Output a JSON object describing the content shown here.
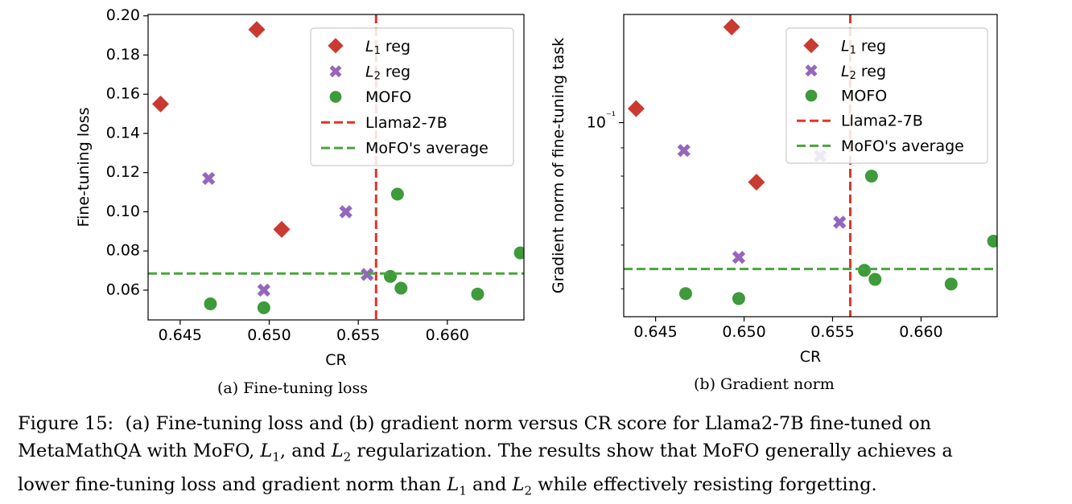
{
  "chart_data": [
    {
      "type": "scatter",
      "xlabel": "CR",
      "ylabel": "Fine-tuning loss",
      "xlim": [
        0.6432,
        0.6643
      ],
      "ylim": [
        0.0448,
        0.2007
      ],
      "xticks": [
        0.645,
        0.65,
        0.655,
        0.66
      ],
      "xtick_labels": [
        "0.645",
        "0.650",
        "0.655",
        "0.660"
      ],
      "yticks": [
        0.06,
        0.08,
        0.1,
        0.12,
        0.14,
        0.16,
        0.18,
        0.2
      ],
      "ytick_labels": [
        "0.06",
        "0.08",
        "0.10",
        "0.12",
        "0.14",
        "0.16",
        "0.18",
        "0.20"
      ],
      "legend_position": "upper right",
      "series": [
        {
          "name": "L1 reg",
          "marker": "diamond",
          "color": "#c93a30",
          "points": [
            [
              0.6439,
              0.155
            ],
            [
              0.6493,
              0.193
            ],
            [
              0.6507,
              0.091
            ]
          ]
        },
        {
          "name": "L2 reg",
          "marker": "x",
          "color": "#9467bd",
          "points": [
            [
              0.6466,
              0.117
            ],
            [
              0.6497,
              0.06
            ],
            [
              0.6543,
              0.1
            ],
            [
              0.6555,
              0.068
            ]
          ]
        },
        {
          "name": "MOFO",
          "marker": "circle",
          "color": "#3e9a3a",
          "points": [
            [
              0.6467,
              0.053
            ],
            [
              0.6497,
              0.051
            ],
            [
              0.6568,
              0.067
            ],
            [
              0.6572,
              0.109
            ],
            [
              0.6574,
              0.061
            ],
            [
              0.6617,
              0.058
            ],
            [
              0.6641,
              0.079
            ]
          ]
        }
      ],
      "reference_lines": [
        {
          "name": "Llama2-7B",
          "orientation": "vertical",
          "value": 0.656,
          "color": "#e0342a"
        },
        {
          "name": "MoFO's average",
          "orientation": "horizontal",
          "value": 0.0685,
          "color": "#4aa33d"
        }
      ],
      "caption": "(a) Fine-tuning loss"
    },
    {
      "type": "scatter",
      "xlabel": "CR",
      "ylabel": "Gradient norm of fine-tuning task",
      "xlim": [
        0.6432,
        0.6643
      ],
      "ylim": [
        0.0445,
        0.157
      ],
      "yscale": "log",
      "xticks": [
        0.645,
        0.65,
        0.655,
        0.66
      ],
      "xtick_labels": [
        "0.645",
        "0.650",
        "0.655",
        "0.660"
      ],
      "yticks": [
        0.1
      ],
      "ytick_labels": [
        "10⁻¹"
      ],
      "legend_position": "upper right",
      "series": [
        {
          "name": "L1 reg",
          "marker": "diamond",
          "color": "#c93a30",
          "points": [
            [
              0.6439,
              0.106
            ],
            [
              0.6493,
              0.149
            ],
            [
              0.6507,
              0.078
            ]
          ]
        },
        {
          "name": "L2 reg",
          "marker": "x",
          "color": "#9467bd",
          "points": [
            [
              0.6466,
              0.089
            ],
            [
              0.6497,
              0.057
            ],
            [
              0.6543,
              0.087
            ],
            [
              0.6554,
              0.066
            ]
          ]
        },
        {
          "name": "MOFO",
          "marker": "circle",
          "color": "#3e9a3a",
          "points": [
            [
              0.6467,
              0.049
            ],
            [
              0.6497,
              0.048
            ],
            [
              0.6568,
              0.054
            ],
            [
              0.6572,
              0.08
            ],
            [
              0.6574,
              0.052
            ],
            [
              0.6617,
              0.051
            ],
            [
              0.6641,
              0.061
            ]
          ]
        }
      ],
      "reference_lines": [
        {
          "name": "Llama2-7B",
          "orientation": "vertical",
          "value": 0.656,
          "color": "#e0342a"
        },
        {
          "name": "MoFO's average",
          "orientation": "horizontal",
          "value": 0.0543,
          "color": "#4aa33d"
        }
      ],
      "caption": "(b) Gradient norm"
    }
  ],
  "figure_caption": {
    "label": "Figure 15:",
    "line1": "(a) Fine-tuning loss and (b) gradient norm versus CR score for Llama2-7B fine-tuned on",
    "line2": "MetaMathQA with MoFO, L1, and L2 regularization. The results show that MoFO generally achieves a",
    "line3": "lower fine-tuning loss and gradient norm than L1 and L2 while effectively resisting forgetting."
  }
}
